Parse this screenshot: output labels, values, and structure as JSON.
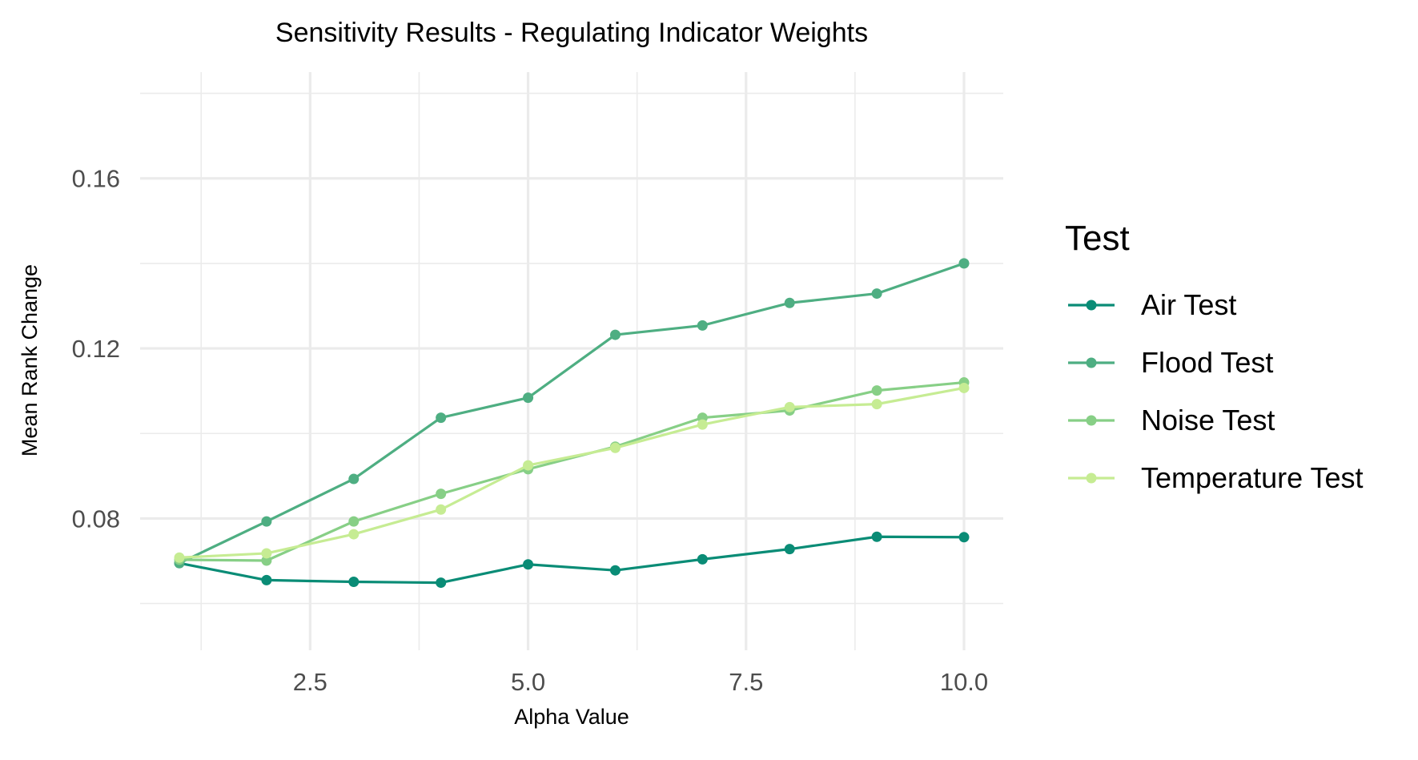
{
  "chart_data": {
    "type": "line",
    "title": "Sensitivity Results - Regulating Indicator Weights",
    "xlabel": "Alpha Value",
    "ylabel": "Mean Rank Change",
    "xlim": [
      0.55,
      10.45
    ],
    "ylim": [
      0.049,
      0.185
    ],
    "x_ticks": [
      {
        "value": 2.5,
        "label": "2.5"
      },
      {
        "value": 5.0,
        "label": "5.0"
      },
      {
        "value": 7.5,
        "label": "7.5"
      },
      {
        "value": 10.0,
        "label": "10.0"
      }
    ],
    "y_ticks": [
      {
        "value": 0.08,
        "label": "0.08"
      },
      {
        "value": 0.12,
        "label": "0.12"
      },
      {
        "value": 0.16,
        "label": "0.16"
      }
    ],
    "x_minor": [
      1.25,
      3.75,
      6.25,
      8.75
    ],
    "y_minor": [
      0.06,
      0.1,
      0.14,
      0.18
    ],
    "grid": true,
    "legend_title": "Test",
    "legend_position": "right",
    "x": [
      1,
      2,
      3,
      4,
      5,
      6,
      7,
      8,
      9,
      10
    ],
    "series": [
      {
        "name": "Air Test",
        "color": "#0a8c76",
        "values": [
          0.0695,
          0.0655,
          0.0651,
          0.0649,
          0.0692,
          0.0678,
          0.0704,
          0.0728,
          0.0757,
          0.0756
        ]
      },
      {
        "name": "Flood Test",
        "color": "#4eae82",
        "values": [
          0.0695,
          0.0793,
          0.0893,
          0.1037,
          0.1084,
          0.1232,
          0.1254,
          0.1307,
          0.1329,
          0.14
        ]
      },
      {
        "name": "Noise Test",
        "color": "#87cf86",
        "values": [
          0.0703,
          0.0701,
          0.0793,
          0.0858,
          0.0916,
          0.0969,
          0.1037,
          0.1054,
          0.1101,
          0.112
        ]
      },
      {
        "name": "Temperature Test",
        "color": "#c6ec93",
        "values": [
          0.0708,
          0.0718,
          0.0763,
          0.0821,
          0.0925,
          0.0966,
          0.1021,
          0.1062,
          0.1069,
          0.1107
        ]
      }
    ]
  }
}
